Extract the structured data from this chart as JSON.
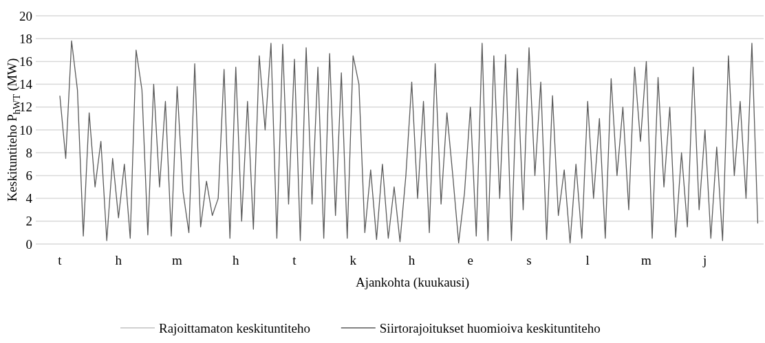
{
  "chart_data": {
    "type": "line",
    "xlabel": "Ajankohta (kuukausi)",
    "ylabel": "Keskituntiteho P$_{hWT}$ (MW)",
    "categories": [
      "t",
      null,
      null,
      null,
      null,
      null,
      null,
      null,
      null,
      null,
      "h",
      null,
      null,
      null,
      null,
      null,
      null,
      null,
      null,
      null,
      "m",
      null,
      null,
      null,
      null,
      null,
      null,
      null,
      null,
      null,
      "h",
      null,
      null,
      null,
      null,
      null,
      null,
      null,
      null,
      null,
      "t",
      null,
      null,
      null,
      null,
      null,
      null,
      null,
      null,
      null,
      "k",
      null,
      null,
      null,
      null,
      null,
      null,
      null,
      null,
      null,
      "h",
      null,
      null,
      null,
      null,
      null,
      null,
      null,
      null,
      null,
      "e",
      null,
      null,
      null,
      null,
      null,
      null,
      null,
      null,
      null,
      "s",
      null,
      null,
      null,
      null,
      null,
      null,
      null,
      null,
      null,
      "l",
      null,
      null,
      null,
      null,
      null,
      null,
      null,
      null,
      null,
      "m",
      null,
      null,
      null,
      null,
      null,
      null,
      null,
      null,
      null,
      "j",
      null,
      null,
      null,
      null,
      null,
      null,
      null,
      null,
      null
    ],
    "series": [
      {
        "name": "Rajoittamaton keskituntiteho",
        "color": "#c0c0c0",
        "values": [
          null,
          null,
          null,
          null,
          null,
          null,
          null,
          null,
          null,
          null,
          null,
          null,
          null,
          null,
          null,
          null,
          null,
          null,
          null,
          null,
          null,
          null,
          null,
          null,
          null,
          null,
          null,
          null,
          null,
          null,
          null,
          null,
          null,
          null,
          null,
          null,
          null,
          null,
          null,
          null,
          null,
          null,
          null,
          null,
          null,
          null,
          null,
          null,
          null,
          null,
          null,
          null,
          null,
          null,
          null,
          null,
          null,
          null,
          null,
          null,
          null,
          null,
          null,
          null,
          null,
          null,
          null,
          null,
          null,
          null,
          null,
          null,
          null,
          null,
          null,
          null,
          null,
          null,
          null,
          null,
          null,
          null,
          null,
          null,
          null,
          null,
          null,
          null,
          null,
          null,
          null,
          null,
          null,
          null,
          null,
          null,
          null,
          null,
          null,
          null,
          null,
          null,
          null,
          null,
          null,
          null,
          null,
          null,
          null,
          null,
          null,
          null,
          null,
          null,
          null,
          null,
          null,
          null,
          null,
          null
        ]
      },
      {
        "name": "Siirtorajoitukset huomioiva keskituntiteho",
        "color": "#595959",
        "values": [
          13,
          7.5,
          17.8,
          13.5,
          0.7,
          11.5,
          5,
          9,
          0.3,
          7.5,
          2.3,
          7,
          0.5,
          17,
          13.5,
          0.8,
          14,
          5,
          12.5,
          0.7,
          13.8,
          4.6,
          1,
          15.8,
          1.5,
          5.5,
          2.5,
          4,
          15.3,
          0.5,
          15.5,
          2,
          12.5,
          1.3,
          16.5,
          10,
          17.6,
          0.5,
          17.5,
          3.5,
          16.2,
          0.3,
          17.2,
          3.5,
          15.5,
          0.5,
          16.7,
          2.5,
          15,
          0.5,
          16.5,
          14,
          1,
          6.5,
          0.4,
          7,
          0.5,
          5,
          0.2,
          6,
          14.2,
          4,
          12.5,
          1,
          15.8,
          3.5,
          11.5,
          6,
          0.1,
          4.5,
          12,
          0.7,
          17.6,
          0.3,
          16.5,
          4,
          16.6,
          0.3,
          15.4,
          3,
          17.2,
          6,
          14.2,
          0.4,
          13,
          2.5,
          6.5,
          0.1,
          7,
          0.5,
          12.5,
          4,
          11,
          0.5,
          14.5,
          6,
          12,
          3,
          15.5,
          9,
          16,
          0.5,
          14.6,
          5,
          12,
          0.6,
          8,
          1.5,
          15.5,
          3,
          10,
          0.5,
          8.5,
          0.3,
          16.5,
          6,
          12.5,
          4,
          17.6,
          1.8
        ]
      }
    ],
    "ylim": [
      0,
      20
    ],
    "yticks": [
      0,
      2,
      4,
      6,
      8,
      10,
      12,
      14,
      16,
      18,
      20
    ],
    "grid": "y",
    "legend": "bottom",
    "marker": "none",
    "line_style": "solid"
  }
}
